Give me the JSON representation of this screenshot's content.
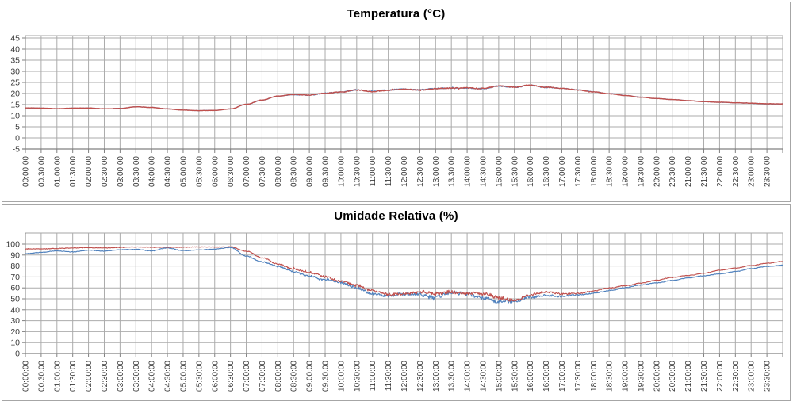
{
  "page": {
    "background": "#ffffff"
  },
  "styles": {
    "grid_color": "#ababab",
    "axis_color": "#808080",
    "plot_border_color": "#a6a6a6",
    "panel_border_color": "#a6a6a6",
    "label_color": "#3b3b3b",
    "title_color": "#000000",
    "series_red": "#C0504D",
    "series_blue": "#4F81BD"
  },
  "chart_data": [
    {
      "type": "line",
      "title": "Temperatura (°C)",
      "xlabel": "",
      "ylabel": "",
      "legend": "none",
      "grid": true,
      "x_label_rotation": -90,
      "sample_interval": "00:30:00",
      "values_note": "49 points per series, every 30 min from 00:00:00 to 24:00:00 (last point at plot right edge, unlabeled)",
      "x_categories": [
        "00:00:00",
        "00:30:00",
        "01:00:00",
        "01:30:00",
        "02:00:00",
        "02:30:00",
        "03:00:00",
        "03:30:00",
        "04:00:00",
        "04:30:00",
        "05:00:00",
        "05:30:00",
        "06:00:00",
        "06:30:00",
        "07:00:00",
        "07:30:00",
        "08:00:00",
        "08:30:00",
        "09:00:00",
        "09:30:00",
        "10:00:00",
        "10:30:00",
        "11:00:00",
        "11:30:00",
        "12:00:00",
        "12:30:00",
        "13:00:00",
        "13:30:00",
        "14:00:00",
        "14:30:00",
        "15:00:00",
        "15:30:00",
        "16:00:00",
        "16:30:00",
        "17:00:00",
        "17:30:00",
        "18:00:00",
        "18:30:00",
        "19:00:00",
        "19:30:00",
        "20:00:00",
        "20:30:00",
        "21:00:00",
        "21:30:00",
        "22:00:00",
        "22:30:00",
        "23:00:00",
        "23:30:00"
      ],
      "y_axis": {
        "min": -5,
        "max": 45,
        "step": 5,
        "tick_labels": [
          "45",
          "40",
          "35",
          "30",
          "25",
          "20",
          "15",
          "10",
          "5",
          "0",
          "-5"
        ]
      },
      "series": [
        {
          "id": "blue",
          "color": "#4F81BD",
          "values": [
            13.5,
            13.4,
            13.2,
            13.4,
            13.4,
            13.1,
            13.3,
            14.0,
            13.7,
            13.1,
            12.6,
            12.3,
            12.4,
            13.1,
            15.2,
            17.0,
            18.8,
            19.6,
            19.3,
            20.0,
            20.6,
            21.7,
            20.9,
            21.4,
            22.0,
            21.8,
            22.2,
            22.4,
            22.7,
            22.4,
            23.3,
            22.8,
            23.9,
            22.8,
            22.2,
            21.6,
            20.8,
            19.9,
            19.1,
            18.4,
            17.8,
            17.3,
            16.8,
            16.4,
            16.1,
            15.8,
            15.6,
            15.4,
            15.3
          ],
          "noise": [
            0.1,
            0.1,
            0.1,
            0.1,
            0.1,
            0.1,
            0.1,
            0.1,
            0.1,
            0.1,
            0.1,
            0.1,
            0.1,
            0.1,
            0.16,
            0.16,
            0.16,
            0.28,
            0.28,
            0.28,
            0.28,
            0.38,
            0.38,
            0.38,
            0.38,
            0.38,
            0.38,
            0.38,
            0.38,
            0.38,
            0.38,
            0.38,
            0.38,
            0.38,
            0.25,
            0.25,
            0.25,
            0.25,
            0.13,
            0.13,
            0.13,
            0.13,
            0.13,
            0.13,
            0.13,
            0.13,
            0.13,
            0.13,
            0.13
          ]
        },
        {
          "id": "red",
          "color": "#C0504D",
          "values": [
            13.5,
            13.4,
            13.2,
            13.4,
            13.4,
            13.1,
            13.3,
            14.0,
            13.7,
            13.1,
            12.6,
            12.3,
            12.4,
            13.1,
            15.2,
            17.0,
            18.8,
            19.6,
            19.3,
            20.0,
            20.6,
            21.7,
            20.9,
            21.4,
            22.0,
            21.8,
            22.2,
            22.4,
            22.7,
            22.4,
            23.3,
            22.8,
            23.9,
            22.8,
            22.2,
            21.6,
            20.8,
            19.9,
            19.1,
            18.4,
            17.8,
            17.3,
            16.8,
            16.4,
            16.1,
            15.8,
            15.6,
            15.4,
            15.3
          ],
          "noise": [
            0.08,
            0.08,
            0.08,
            0.08,
            0.08,
            0.08,
            0.08,
            0.08,
            0.08,
            0.08,
            0.08,
            0.08,
            0.08,
            0.08,
            0.12,
            0.12,
            0.12,
            0.22,
            0.22,
            0.22,
            0.22,
            0.3,
            0.3,
            0.3,
            0.3,
            0.3,
            0.3,
            0.3,
            0.3,
            0.3,
            0.3,
            0.3,
            0.3,
            0.3,
            0.2,
            0.2,
            0.2,
            0.2,
            0.1,
            0.1,
            0.1,
            0.1,
            0.1,
            0.1,
            0.1,
            0.1,
            0.1,
            0.1,
            0.1
          ]
        }
      ]
    },
    {
      "type": "line",
      "title": "Umidade Relativa (%)",
      "xlabel": "",
      "ylabel": "",
      "legend": "none",
      "grid": true,
      "x_label_rotation": -90,
      "sample_interval": "00:30:00",
      "values_note": "49 points per series, every 30 min from 00:00:00 to 24:00:00 (last point at plot right edge, unlabeled)",
      "x_categories": [
        "00:00:00",
        "00:30:00",
        "01:00:00",
        "01:30:00",
        "02:00:00",
        "02:30:00",
        "03:00:00",
        "03:30:00",
        "04:00:00",
        "04:30:00",
        "05:00:00",
        "05:30:00",
        "06:00:00",
        "06:30:00",
        "07:00:00",
        "07:30:00",
        "08:00:00",
        "08:30:00",
        "09:00:00",
        "09:30:00",
        "10:00:00",
        "10:30:00",
        "11:00:00",
        "11:30:00",
        "12:00:00",
        "12:30:00",
        "13:00:00",
        "13:30:00",
        "14:00:00",
        "14:30:00",
        "15:00:00",
        "15:30:00",
        "16:00:00",
        "16:30:00",
        "17:00:00",
        "17:30:00",
        "18:00:00",
        "18:30:00",
        "19:00:00",
        "19:30:00",
        "20:00:00",
        "20:30:00",
        "21:00:00",
        "21:30:00",
        "22:00:00",
        "22:30:00",
        "23:00:00",
        "23:30:00"
      ],
      "y_axis": {
        "min": 0,
        "max": 100,
        "step": 10,
        "tick_labels": [
          "100",
          "90",
          "80",
          "70",
          "60",
          "50",
          "40",
          "30",
          "20",
          "10",
          "0"
        ]
      },
      "series": [
        {
          "id": "blue",
          "color": "#4F81BD",
          "values": [
            91.5,
            92.3,
            93.8,
            93.0,
            94.3,
            93.4,
            94.8,
            95.3,
            93.6,
            96.4,
            94.1,
            94.8,
            95.4,
            96.9,
            89.5,
            84.0,
            79.5,
            75.0,
            71.0,
            67.0,
            63.8,
            59.8,
            54.5,
            52.0,
            53.5,
            54.5,
            52.5,
            55.0,
            54.5,
            52.5,
            48.5,
            47.0,
            51.5,
            53.5,
            52.0,
            53.0,
            55.0,
            57.5,
            60.0,
            62.5,
            64.8,
            67.0,
            69.0,
            71.0,
            73.0,
            75.0,
            77.5,
            79.5,
            81.0
          ],
          "noise": [
            0.35,
            0.35,
            0.35,
            0.35,
            0.35,
            0.35,
            0.35,
            0.35,
            0.35,
            0.35,
            0.35,
            0.35,
            0.35,
            0.3,
            0.5,
            0.7,
            0.9,
            1.2,
            1.4,
            1.4,
            1.6,
            1.8,
            1.8,
            1.8,
            1.9,
            2.0,
            2.2,
            2.3,
            2.2,
            2.3,
            2.2,
            1.9,
            1.8,
            1.3,
            1.0,
            0.9,
            0.7,
            0.6,
            0.5,
            0.45,
            0.4,
            0.4,
            0.35,
            0.35,
            0.3,
            0.3,
            0.3,
            0.3,
            0.3
          ]
        },
        {
          "id": "red",
          "color": "#C0504D",
          "values": [
            95.5,
            95.8,
            96.1,
            96.3,
            96.6,
            96.6,
            96.9,
            97.2,
            97.1,
            97.3,
            97.3,
            97.4,
            97.5,
            97.8,
            93.5,
            87.5,
            82.0,
            77.5,
            73.5,
            69.5,
            66.0,
            62.0,
            56.5,
            54.0,
            55.5,
            56.5,
            54.5,
            57.5,
            56.5,
            54.5,
            50.5,
            49.0,
            53.5,
            55.5,
            54.0,
            55.0,
            57.0,
            59.5,
            62.0,
            64.5,
            67.0,
            69.5,
            71.5,
            73.5,
            76.0,
            78.0,
            80.5,
            82.5,
            84.0
          ],
          "noise": [
            0.35,
            0.35,
            0.35,
            0.35,
            0.35,
            0.35,
            0.35,
            0.35,
            0.35,
            0.35,
            0.35,
            0.35,
            0.35,
            0.3,
            0.5,
            0.7,
            0.9,
            1.2,
            1.4,
            1.4,
            1.6,
            1.8,
            1.8,
            1.8,
            1.9,
            2.0,
            2.2,
            2.3,
            2.2,
            2.3,
            2.2,
            1.9,
            1.8,
            1.3,
            1.0,
            0.9,
            0.7,
            0.6,
            0.5,
            0.45,
            0.4,
            0.4,
            0.35,
            0.35,
            0.3,
            0.3,
            0.3,
            0.3,
            0.3
          ]
        }
      ]
    }
  ]
}
